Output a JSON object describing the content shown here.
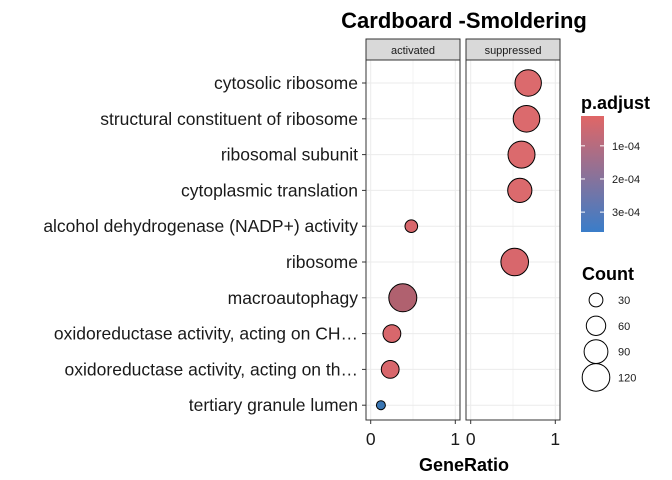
{
  "chart_data": {
    "type": "scatter",
    "title": "Cardboard -Smoldering",
    "xlabel": "GeneRatio",
    "ylabel": "",
    "xlim": [
      0,
      1
    ],
    "x_ticks": [
      "0",
      "1"
    ],
    "grid": true,
    "facets": [
      "activated",
      "suppressed"
    ],
    "categories": [
      "cytosolic ribosome",
      "structural constituent of ribosome",
      "ribosomal subunit",
      "cytoplasmic translation",
      "alcohol dehydrogenase (NADP+) activity",
      "ribosome",
      "macroautophagy",
      "oxidoreductase activity, acting on CH…",
      "oxidoreductase activity, acting on th…",
      "tertiary granule lumen"
    ],
    "points": [
      {
        "facet": "suppressed",
        "category": "cytosolic ribosome",
        "x": 0.68,
        "count": 110,
        "p_adjust": 1e-05,
        "color": "#db6a6d"
      },
      {
        "facet": "suppressed",
        "category": "structural constituent of ribosome",
        "x": 0.66,
        "count": 112,
        "p_adjust": 1e-05,
        "color": "#db6a6d"
      },
      {
        "facet": "suppressed",
        "category": "ribosomal subunit",
        "x": 0.6,
        "count": 115,
        "p_adjust": 1e-05,
        "color": "#db6a6d"
      },
      {
        "facet": "suppressed",
        "category": "cytoplasmic translation",
        "x": 0.58,
        "count": 92,
        "p_adjust": 1e-05,
        "color": "#db6a6d"
      },
      {
        "facet": "activated",
        "category": "alcohol dehydrogenase (NADP+) activity",
        "x": 0.48,
        "count": 25,
        "p_adjust": 2e-05,
        "color": "#d8676c"
      },
      {
        "facet": "suppressed",
        "category": "ribosome",
        "x": 0.52,
        "count": 120,
        "p_adjust": 2e-05,
        "color": "#d8676c"
      },
      {
        "facet": "activated",
        "category": "macroautophagy",
        "x": 0.38,
        "count": 124,
        "p_adjust": 0.00011,
        "color": "#b0616f"
      },
      {
        "facet": "activated",
        "category": "oxidoreductase activity, acting on CH…",
        "x": 0.25,
        "count": 50,
        "p_adjust": 2e-05,
        "color": "#d8676c"
      },
      {
        "facet": "activated",
        "category": "oxidoreductase activity, acting on th…",
        "x": 0.23,
        "count": 50,
        "p_adjust": 2e-05,
        "color": "#d8676c"
      },
      {
        "facet": "activated",
        "category": "tertiary granule lumen",
        "x": 0.12,
        "count": 13,
        "p_adjust": 0.00036,
        "color": "#3a76b3"
      }
    ],
    "color_legend": {
      "title": "p.adjust",
      "labels": [
        "1e-04",
        "2e-04",
        "3e-04"
      ],
      "values": [
        0.0001,
        0.0002,
        0.0003
      ],
      "range": [
        1e-05,
        0.00036
      ],
      "low_color": "#e06666",
      "high_color": "#3a7dc9"
    },
    "size_legend": {
      "title": "Count",
      "values": [
        30,
        60,
        90,
        120
      ],
      "labels": [
        "30",
        "60",
        "90",
        "120"
      ]
    },
    "legend_position": "right"
  }
}
